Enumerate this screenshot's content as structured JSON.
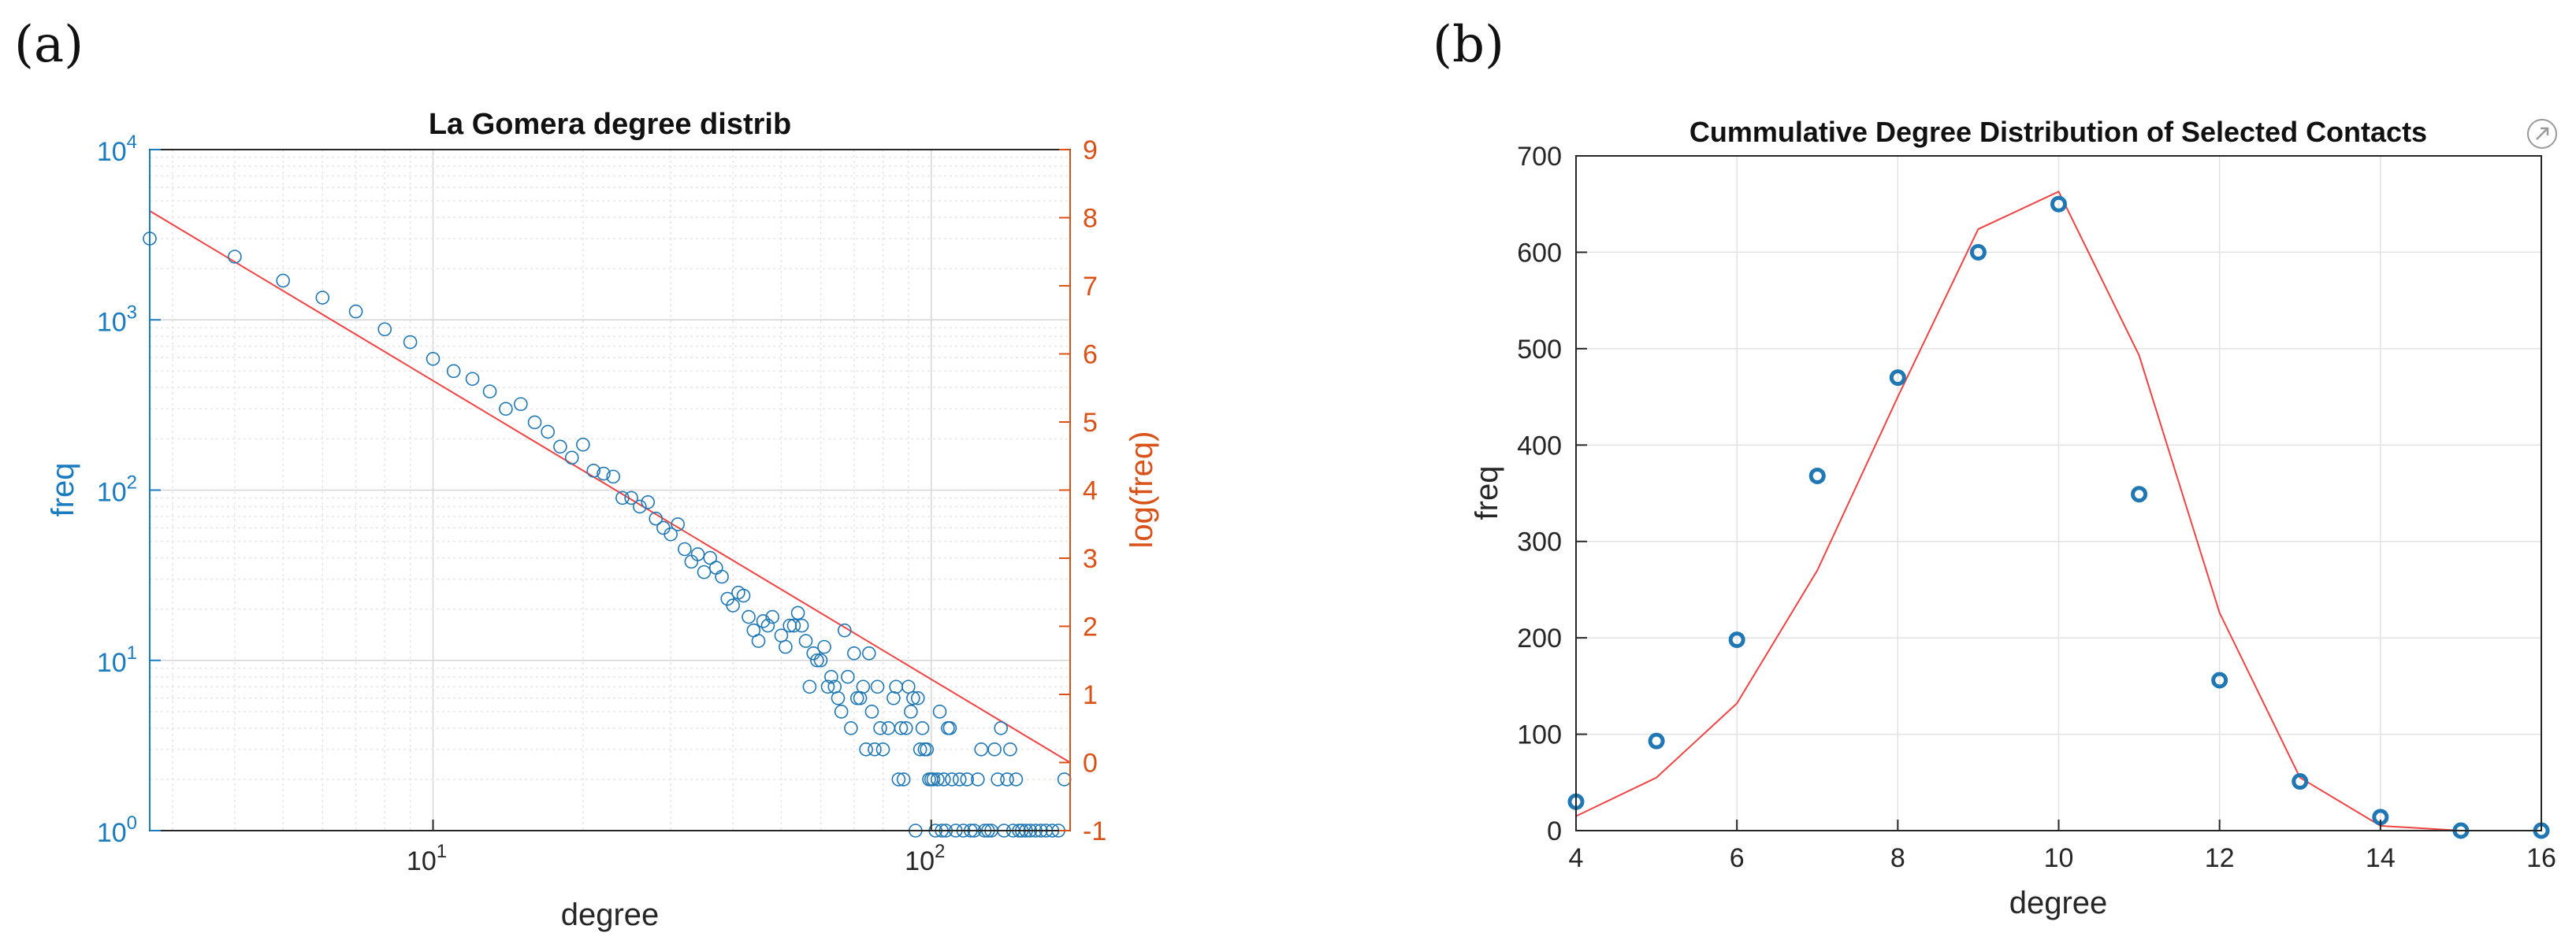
{
  "figure": {
    "label_a": "(a)",
    "label_b": "(b)"
  },
  "colors": {
    "marker": "#1f77b4",
    "left_axis": "#1a7bbf",
    "right_axis": "#d95319",
    "fit": "#ee4444",
    "dark_axis": "#262626"
  },
  "chart_data": [
    {
      "type": "scatter",
      "title": "La Gomera degree distrib",
      "xlabel": "degree",
      "ylabel": "freq",
      "ylabel_right": "log(freq)",
      "xscale": "log",
      "yscale": "log",
      "xlim": [
        2.7,
        190
      ],
      "ylim": [
        1,
        10000
      ],
      "ylim_right": [
        -1,
        9
      ],
      "grid": true,
      "x_ticks": [
        {
          "base": "10",
          "exp": "1",
          "value": 10
        },
        {
          "base": "10",
          "exp": "2",
          "value": 100
        }
      ],
      "y_ticks": [
        {
          "base": "10",
          "exp": "0",
          "value": 1
        },
        {
          "base": "10",
          "exp": "1",
          "value": 10
        },
        {
          "base": "10",
          "exp": "2",
          "value": 100
        },
        {
          "base": "10",
          "exp": "3",
          "value": 1000
        },
        {
          "base": "10",
          "exp": "4",
          "value": 10000
        }
      ],
      "y_ticks_right": [
        "-1",
        "0",
        "1",
        "2",
        "3",
        "4",
        "5",
        "6",
        "7",
        "8",
        "9"
      ],
      "points": [
        [
          2.7,
          3000
        ],
        [
          4,
          2350
        ],
        [
          5,
          1700
        ],
        [
          6,
          1350
        ],
        [
          7,
          1120
        ],
        [
          8,
          880
        ],
        [
          9,
          740
        ],
        [
          10,
          590
        ],
        [
          11,
          500
        ],
        [
          12,
          450
        ],
        [
          13,
          380
        ],
        [
          14,
          300
        ],
        [
          15,
          320
        ],
        [
          16,
          250
        ],
        [
          17,
          220
        ],
        [
          18,
          180
        ],
        [
          19,
          155
        ],
        [
          20,
          185
        ],
        [
          21,
          130
        ],
        [
          22,
          125
        ],
        [
          23,
          120
        ],
        [
          24,
          90
        ],
        [
          25,
          90
        ],
        [
          26,
          80
        ],
        [
          27,
          85
        ],
        [
          28,
          68
        ],
        [
          29,
          60
        ],
        [
          30,
          55
        ],
        [
          31,
          63
        ],
        [
          32,
          45
        ],
        [
          33,
          38
        ],
        [
          34,
          42
        ],
        [
          35,
          33
        ],
        [
          36,
          40
        ],
        [
          37,
          35
        ],
        [
          38,
          31
        ],
        [
          39,
          23
        ],
        [
          40,
          21
        ],
        [
          41,
          25
        ],
        [
          42,
          24
        ],
        [
          43,
          18
        ],
        [
          44,
          15
        ],
        [
          45,
          13
        ],
        [
          46,
          17
        ],
        [
          47,
          16
        ],
        [
          48,
          18
        ],
        [
          50,
          14
        ],
        [
          51,
          12
        ],
        [
          52,
          16
        ],
        [
          53,
          16
        ],
        [
          54,
          19
        ],
        [
          55,
          16
        ],
        [
          56,
          13
        ],
        [
          57,
          7
        ],
        [
          58,
          11
        ],
        [
          59,
          10
        ],
        [
          60,
          10
        ],
        [
          61,
          12
        ],
        [
          62,
          7
        ],
        [
          63,
          8
        ],
        [
          64,
          7
        ],
        [
          65,
          6
        ],
        [
          66,
          5
        ],
        [
          67,
          15
        ],
        [
          68,
          8
        ],
        [
          69,
          4
        ],
        [
          70,
          11
        ],
        [
          71,
          6
        ],
        [
          72,
          6
        ],
        [
          73,
          7
        ],
        [
          74,
          3
        ],
        [
          75,
          11
        ],
        [
          76,
          5
        ],
        [
          77,
          3
        ],
        [
          78,
          7
        ],
        [
          79,
          4
        ],
        [
          80,
          3
        ],
        [
          82,
          4
        ],
        [
          84,
          6
        ],
        [
          85,
          7
        ],
        [
          86,
          2
        ],
        [
          87,
          4
        ],
        [
          88,
          2
        ],
        [
          89,
          4
        ],
        [
          90,
          7
        ],
        [
          91,
          5
        ],
        [
          92,
          6
        ],
        [
          93,
          1
        ],
        [
          94,
          6
        ],
        [
          95,
          3
        ],
        [
          96,
          4
        ],
        [
          97,
          3
        ],
        [
          98,
          3
        ],
        [
          99,
          2
        ],
        [
          100,
          2
        ],
        [
          101,
          2
        ],
        [
          102,
          1
        ],
        [
          103,
          2
        ],
        [
          104,
          5
        ],
        [
          105,
          1
        ],
        [
          106,
          2
        ],
        [
          107,
          1
        ],
        [
          108,
          4
        ],
        [
          109,
          4
        ],
        [
          110,
          2
        ],
        [
          112,
          1
        ],
        [
          114,
          2
        ],
        [
          116,
          1
        ],
        [
          118,
          2
        ],
        [
          120,
          1
        ],
        [
          122,
          1
        ],
        [
          124,
          2
        ],
        [
          126,
          3
        ],
        [
          128,
          1
        ],
        [
          130,
          1
        ],
        [
          132,
          1
        ],
        [
          134,
          3
        ],
        [
          136,
          2
        ],
        [
          138,
          4
        ],
        [
          140,
          1
        ],
        [
          142,
          2
        ],
        [
          144,
          3
        ],
        [
          146,
          1
        ],
        [
          148,
          2
        ],
        [
          150,
          1
        ],
        [
          152,
          1
        ],
        [
          155,
          1
        ],
        [
          158,
          1
        ],
        [
          162,
          1
        ],
        [
          166,
          1
        ],
        [
          170,
          1
        ],
        [
          175,
          1
        ],
        [
          180,
          1
        ],
        [
          185,
          2
        ]
      ],
      "fit_line": {
        "x": [
          2.7,
          190
        ],
        "y_right": [
          8.1,
          0
        ]
      }
    },
    {
      "type": "scatter",
      "title": "Cummulative Degree Distribution of Selected Contacts",
      "xlabel": "degree",
      "ylabel": "freq",
      "xlim": [
        4,
        16
      ],
      "ylim": [
        0,
        700
      ],
      "grid": true,
      "x_ticks": [
        "4",
        "6",
        "8",
        "10",
        "12",
        "14",
        "16"
      ],
      "y_ticks": [
        "0",
        "100",
        "200",
        "300",
        "400",
        "500",
        "600",
        "700"
      ],
      "points": [
        [
          4,
          30
        ],
        [
          5,
          93
        ],
        [
          6,
          198
        ],
        [
          7,
          368
        ],
        [
          8,
          470
        ],
        [
          9,
          600
        ],
        [
          10,
          650
        ],
        [
          11,
          349
        ],
        [
          12,
          156
        ],
        [
          13,
          51
        ],
        [
          14,
          14
        ],
        [
          15,
          0
        ],
        [
          16,
          0
        ]
      ],
      "fit_line": {
        "x": [
          4,
          5,
          6,
          7,
          8,
          9,
          10,
          11,
          12,
          13,
          14,
          15,
          16
        ],
        "y": [
          15,
          55,
          132,
          270,
          450,
          624,
          663,
          493,
          226,
          55,
          5,
          0,
          0
        ]
      }
    }
  ]
}
